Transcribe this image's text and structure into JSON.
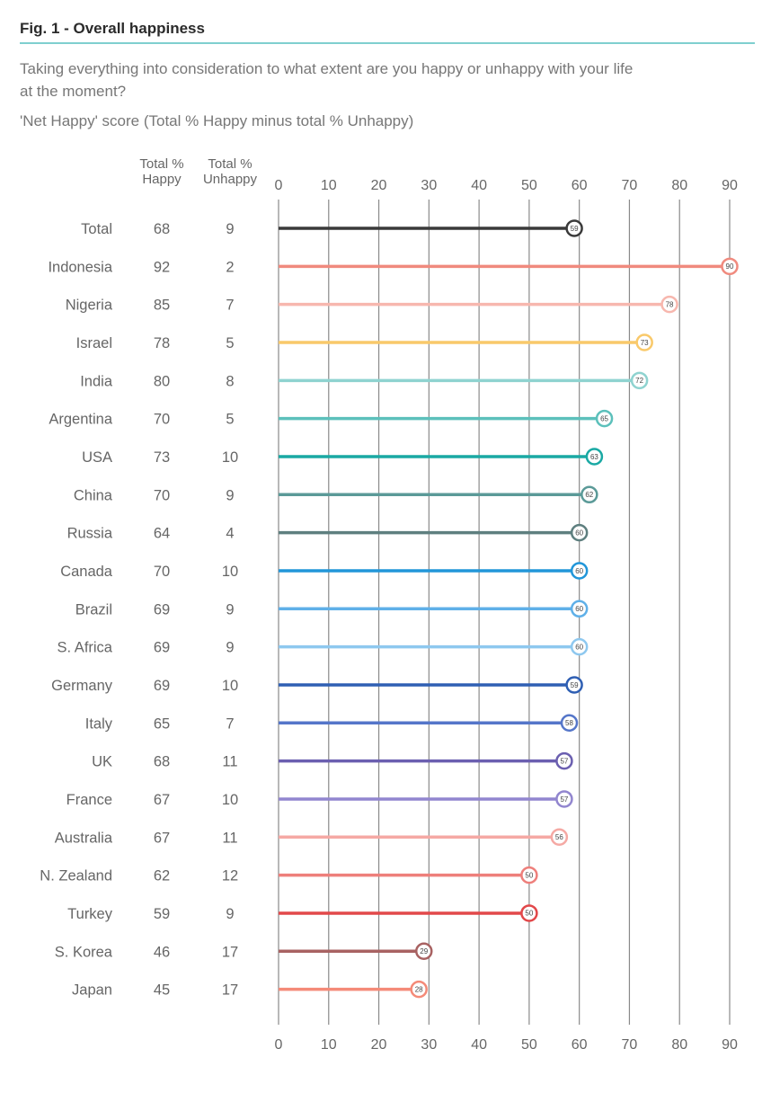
{
  "title": "Fig. 1 - Overall happiness",
  "subtitle": "Taking everything into consideration to what extent are you happy or unhappy with your life at the moment?",
  "note": "'Net Happy' score (Total % Happy minus total % Unhappy)",
  "columns": {
    "happy": "Total % Happy",
    "unhappy": "Total % Unhappy"
  },
  "chart_data": {
    "type": "lollipop",
    "xlim": [
      0,
      90
    ],
    "xticks": [
      0,
      10,
      20,
      30,
      40,
      50,
      60,
      70,
      80,
      90
    ],
    "grid": true,
    "rows": [
      {
        "label": "Total",
        "happy": 68,
        "unhappy": 9,
        "net": 59,
        "color": "#3a3a3a"
      },
      {
        "label": "Indonesia",
        "happy": 92,
        "unhappy": 2,
        "net": 90,
        "color": "#f08a7e"
      },
      {
        "label": "Nigeria",
        "happy": 85,
        "unhappy": 7,
        "net": 78,
        "color": "#f7b7ae"
      },
      {
        "label": "Israel",
        "happy": 78,
        "unhappy": 5,
        "net": 73,
        "color": "#f9c96a"
      },
      {
        "label": "India",
        "happy": 80,
        "unhappy": 8,
        "net": 72,
        "color": "#8fd3d0"
      },
      {
        "label": "Argentina",
        "happy": 70,
        "unhappy": 5,
        "net": 65,
        "color": "#5cc0bb"
      },
      {
        "label": "USA",
        "happy": 73,
        "unhappy": 10,
        "net": 63,
        "color": "#1aa9a4"
      },
      {
        "label": "China",
        "happy": 70,
        "unhappy": 9,
        "net": 62,
        "color": "#5b9a98"
      },
      {
        "label": "Russia",
        "happy": 64,
        "unhappy": 4,
        "net": 60,
        "color": "#5e7f7f"
      },
      {
        "label": "Canada",
        "happy": 70,
        "unhappy": 10,
        "net": 60,
        "color": "#2196d9"
      },
      {
        "label": "Brazil",
        "happy": 69,
        "unhappy": 9,
        "net": 60,
        "color": "#5fb0e8"
      },
      {
        "label": "S. Africa",
        "happy": 69,
        "unhappy": 9,
        "net": 60,
        "color": "#8ec8ef"
      },
      {
        "label": "Germany",
        "happy": 69,
        "unhappy": 10,
        "net": 59,
        "color": "#2f5fb3"
      },
      {
        "label": "Italy",
        "happy": 65,
        "unhappy": 7,
        "net": 58,
        "color": "#5576c9"
      },
      {
        "label": "UK",
        "happy": 68,
        "unhappy": 11,
        "net": 57,
        "color": "#6b5fb0"
      },
      {
        "label": "France",
        "happy": 67,
        "unhappy": 10,
        "net": 57,
        "color": "#9286cf"
      },
      {
        "label": "Australia",
        "happy": 67,
        "unhappy": 11,
        "net": 56,
        "color": "#f5a9a4"
      },
      {
        "label": "N. Zealand",
        "happy": 62,
        "unhappy": 12,
        "net": 50,
        "color": "#ee7f7b"
      },
      {
        "label": "Turkey",
        "happy": 59,
        "unhappy": 9,
        "net": 50,
        "color": "#e2484a"
      },
      {
        "label": "S. Korea",
        "happy": 46,
        "unhappy": 17,
        "net": 29,
        "color": "#a86262"
      },
      {
        "label": "Japan",
        "happy": 45,
        "unhappy": 17,
        "net": 28,
        "color": "#f48a78"
      }
    ]
  }
}
